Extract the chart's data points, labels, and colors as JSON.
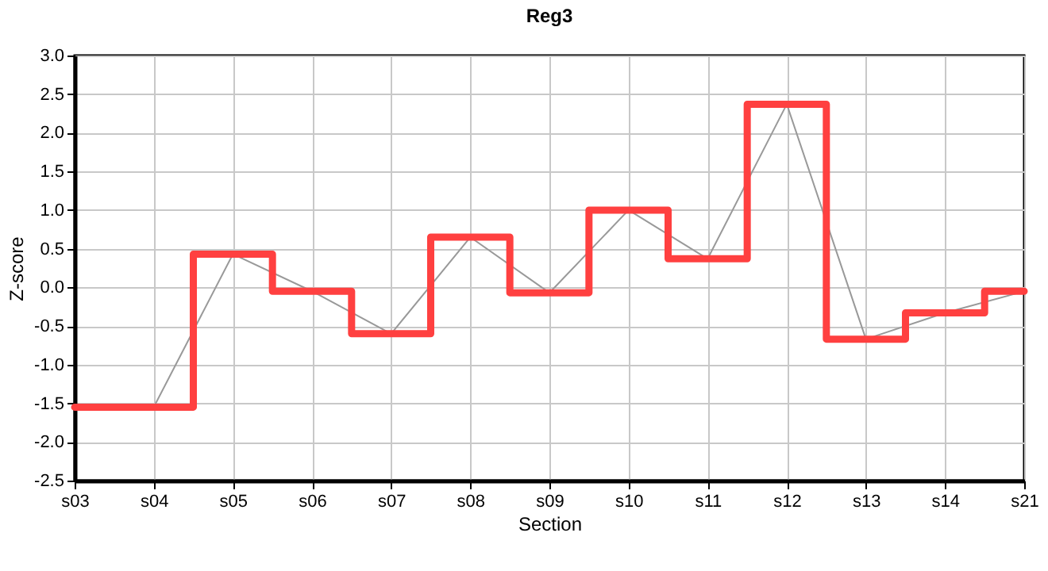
{
  "chart_data": {
    "type": "line",
    "title": "Reg3",
    "xlabel": "Section",
    "ylabel": "Z-score",
    "categories": [
      "s03",
      "s04",
      "s05",
      "s06",
      "s07",
      "s08",
      "s09",
      "s10",
      "s11",
      "s12",
      "s13",
      "s14",
      "s21"
    ],
    "series": [
      {
        "type": "line",
        "color": "#999999",
        "values": [
          -1.55,
          -1.55,
          0.43,
          -0.05,
          -0.6,
          0.65,
          -0.07,
          1.0,
          0.37,
          2.37,
          -0.67,
          -0.33,
          -0.05
        ]
      },
      {
        "type": "step",
        "color": "#ff4040",
        "values": [
          -1.55,
          -1.55,
          0.43,
          -0.05,
          -0.6,
          0.65,
          -0.07,
          1.0,
          0.37,
          2.37,
          -0.67,
          -0.33,
          -0.05
        ]
      }
    ],
    "ylim": [
      -2.5,
      3.0
    ],
    "yticks": [
      {
        "value": -2.5,
        "label": "-2.5"
      },
      {
        "value": -2,
        "label": "-2.0"
      },
      {
        "value": -1.5,
        "label": "-1.5"
      },
      {
        "value": -1,
        "label": "-1.0"
      },
      {
        "value": -0.5,
        "label": "-0.5"
      },
      {
        "value": 0,
        "label": "0.0"
      },
      {
        "value": 0.5,
        "label": "0.5"
      },
      {
        "value": 1,
        "label": "1.0"
      },
      {
        "value": 1.5,
        "label": "1.5"
      },
      {
        "value": 2,
        "label": "2.0"
      },
      {
        "value": 2.5,
        "label": "2.5"
      },
      {
        "value": 3,
        "label": "3.0"
      }
    ],
    "grid": true,
    "marker": "none"
  }
}
